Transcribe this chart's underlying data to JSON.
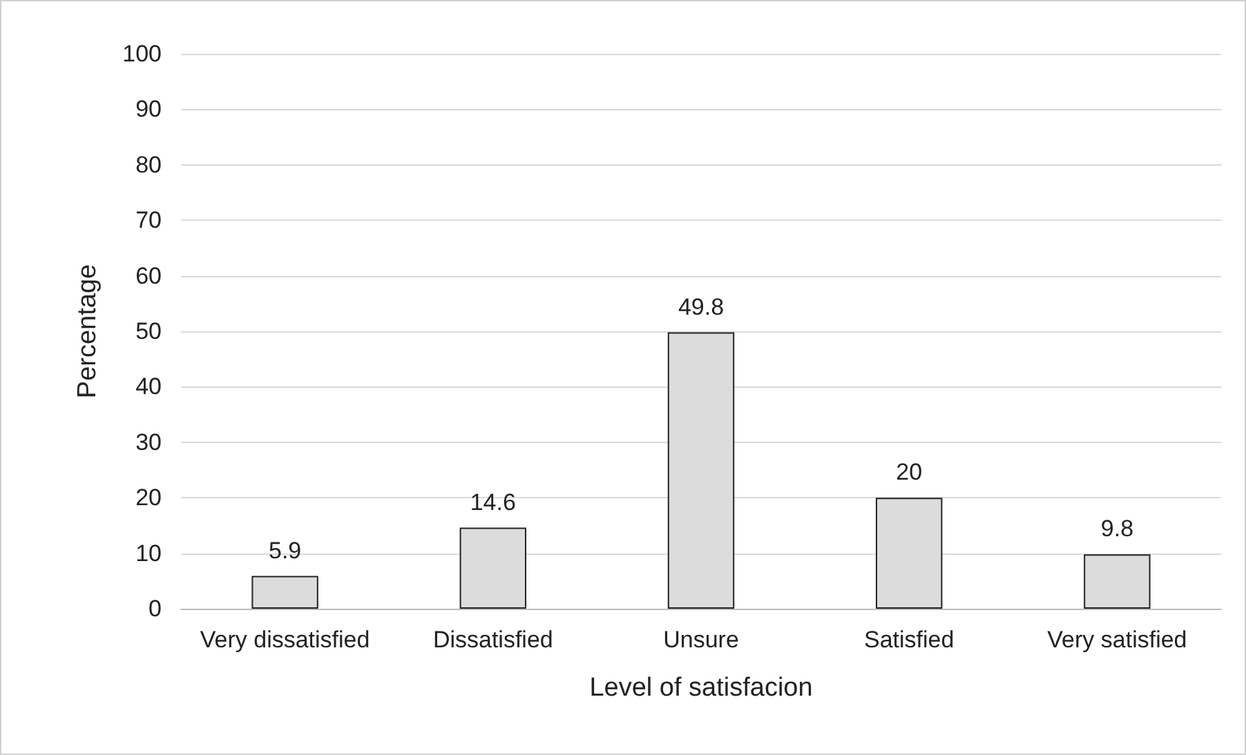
{
  "chart_data": {
    "type": "bar",
    "categories": [
      "Very dissatisfied",
      "Dissatisfied",
      "Unsure",
      "Satisfied",
      "Very satisfied"
    ],
    "values": [
      5.9,
      14.6,
      49.8,
      20,
      9.8
    ],
    "color": "#dcdcdc",
    "xlabel": "Level of satisfacion",
    "ylabel": "Percentage",
    "ylim": [
      0,
      100
    ],
    "yticks": [
      0,
      10,
      20,
      30,
      40,
      50,
      60,
      70,
      80,
      90,
      100
    ],
    "grid": "y",
    "data_labels": true
  }
}
